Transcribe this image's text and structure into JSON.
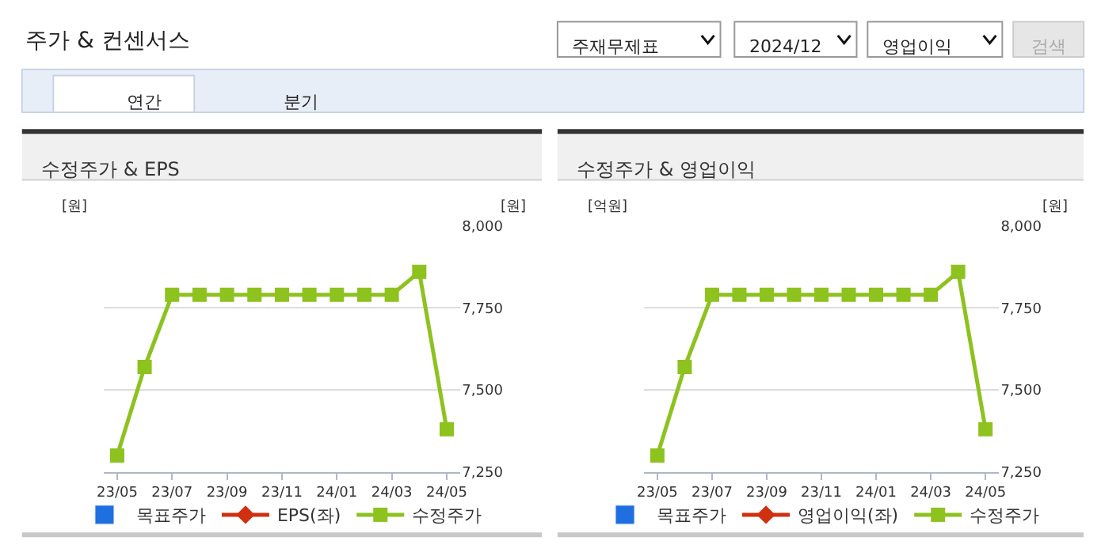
{
  "chart_data": [
    {
      "type": "other",
      "title": "주가 & 컨센서스",
      "annotations": [
        "주재무제표",
        "2024/12",
        "영업이익",
        "검색",
        "연간",
        "분기"
      ]
    },
    {
      "type": "line",
      "title": "수정주가 & EPS",
      "categories": [
        "23/05",
        null,
        "23/07",
        null,
        "23/09",
        null,
        "23/11",
        null,
        "24/01",
        null,
        "24/03",
        null,
        "24/05"
      ],
      "ylabel": "[원]",
      "y2label": "[원]",
      "y2lim": [
        7250,
        8000
      ],
      "y2ticks": [
        {
          "value": 7250,
          "label": "7,250"
        },
        {
          "value": 7500,
          "label": "7,500"
        },
        {
          "value": 7750,
          "label": "7,750"
        },
        {
          "value": 8000,
          "label": "8,000"
        }
      ],
      "grid": "y",
      "legend": "bottom",
      "series": [
        {
          "name": "목표주가",
          "type": "bar",
          "color": "#1f6fe0",
          "values": [
            null,
            null,
            null,
            null,
            null,
            null,
            null,
            null,
            null,
            null,
            null,
            null,
            null
          ]
        },
        {
          "name": "EPS(좌)",
          "type": "line",
          "color": "#d03010",
          "marker": "diamond",
          "values": [
            null,
            null,
            null,
            null,
            null,
            null,
            null,
            null,
            null,
            null,
            null,
            null,
            null
          ]
        },
        {
          "name": "수정주가",
          "type": "line",
          "axis": "y2",
          "color": "#8dc21f",
          "marker": "square",
          "values": [
            7300,
            7570,
            7790,
            7790,
            7790,
            7790,
            7790,
            7790,
            7790,
            7790,
            7790,
            7860,
            7380
          ]
        }
      ]
    },
    {
      "type": "line",
      "title": "수정주가 & 영업이익",
      "categories": [
        "23/05",
        null,
        "23/07",
        null,
        "23/09",
        null,
        "23/11",
        null,
        "24/01",
        null,
        "24/03",
        null,
        "24/05"
      ],
      "ylabel": "[억원]",
      "y2label": "[원]",
      "y2lim": [
        7250,
        8000
      ],
      "y2ticks": [
        {
          "value": 7250,
          "label": "7,250"
        },
        {
          "value": 7500,
          "label": "7,500"
        },
        {
          "value": 7750,
          "label": "7,750"
        },
        {
          "value": 8000,
          "label": "8,000"
        }
      ],
      "grid": "y",
      "legend": "bottom",
      "series": [
        {
          "name": "목표주가",
          "type": "bar",
          "color": "#1f6fe0",
          "values": [
            null,
            null,
            null,
            null,
            null,
            null,
            null,
            null,
            null,
            null,
            null,
            null,
            null
          ]
        },
        {
          "name": "영업이익(좌)",
          "type": "line",
          "color": "#d03010",
          "marker": "diamond",
          "values": [
            null,
            null,
            null,
            null,
            null,
            null,
            null,
            null,
            null,
            null,
            null,
            null,
            null
          ]
        },
        {
          "name": "수정주가",
          "type": "line",
          "axis": "y2",
          "color": "#8dc21f",
          "marker": "square",
          "values": [
            7300,
            7570,
            7790,
            7790,
            7790,
            7790,
            7790,
            7790,
            7790,
            7790,
            7790,
            7860,
            7380
          ]
        }
      ]
    }
  ]
}
